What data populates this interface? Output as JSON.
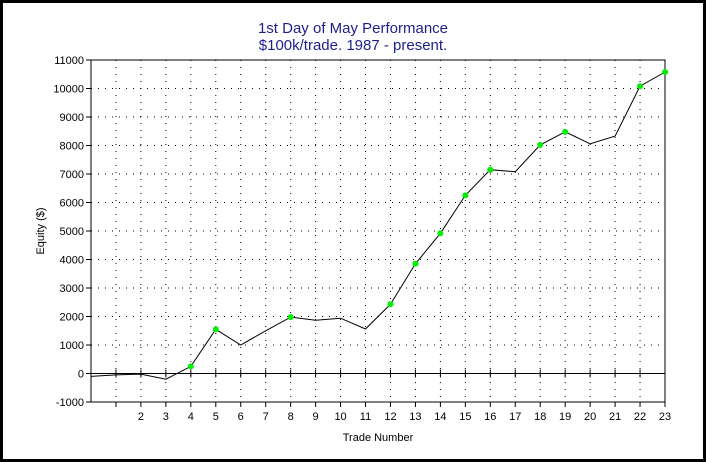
{
  "chart_data": {
    "type": "line",
    "title": "1st Day of May Performance",
    "subtitle": "$100k/trade. 1987 - present.",
    "xlabel": "Trade Number",
    "ylabel": "Equity ($)",
    "xlim": [
      0,
      23
    ],
    "ylim": [
      -1000,
      11000
    ],
    "x_ticks": [
      2,
      3,
      4,
      5,
      6,
      7,
      8,
      9,
      10,
      11,
      12,
      13,
      14,
      15,
      16,
      17,
      18,
      19,
      20,
      21,
      22,
      23
    ],
    "y_ticks": [
      -1000,
      0,
      1000,
      2000,
      3000,
      4000,
      5000,
      6000,
      7000,
      8000,
      9000,
      10000,
      11000
    ],
    "grid": true,
    "colors": {
      "line": "#000000",
      "marker": "#00ee00",
      "title": "#1c1f8a"
    },
    "series": [
      {
        "x": [
          0,
          1,
          2,
          3,
          4,
          5,
          6,
          7,
          8,
          9,
          10,
          11,
          12,
          13,
          14,
          15,
          16,
          17,
          18,
          19,
          20,
          21,
          22,
          23
        ],
        "values": [
          -100,
          -50,
          -20,
          -200,
          250,
          1550,
          1000,
          1500,
          1980,
          1870,
          1940,
          1560,
          2430,
          3850,
          4920,
          6250,
          7150,
          7080,
          8020,
          8480,
          8060,
          8330,
          10080,
          10580
        ],
        "markers": [
          4,
          5,
          8,
          12,
          13,
          14,
          15,
          16,
          18,
          19,
          22,
          23
        ]
      }
    ]
  }
}
